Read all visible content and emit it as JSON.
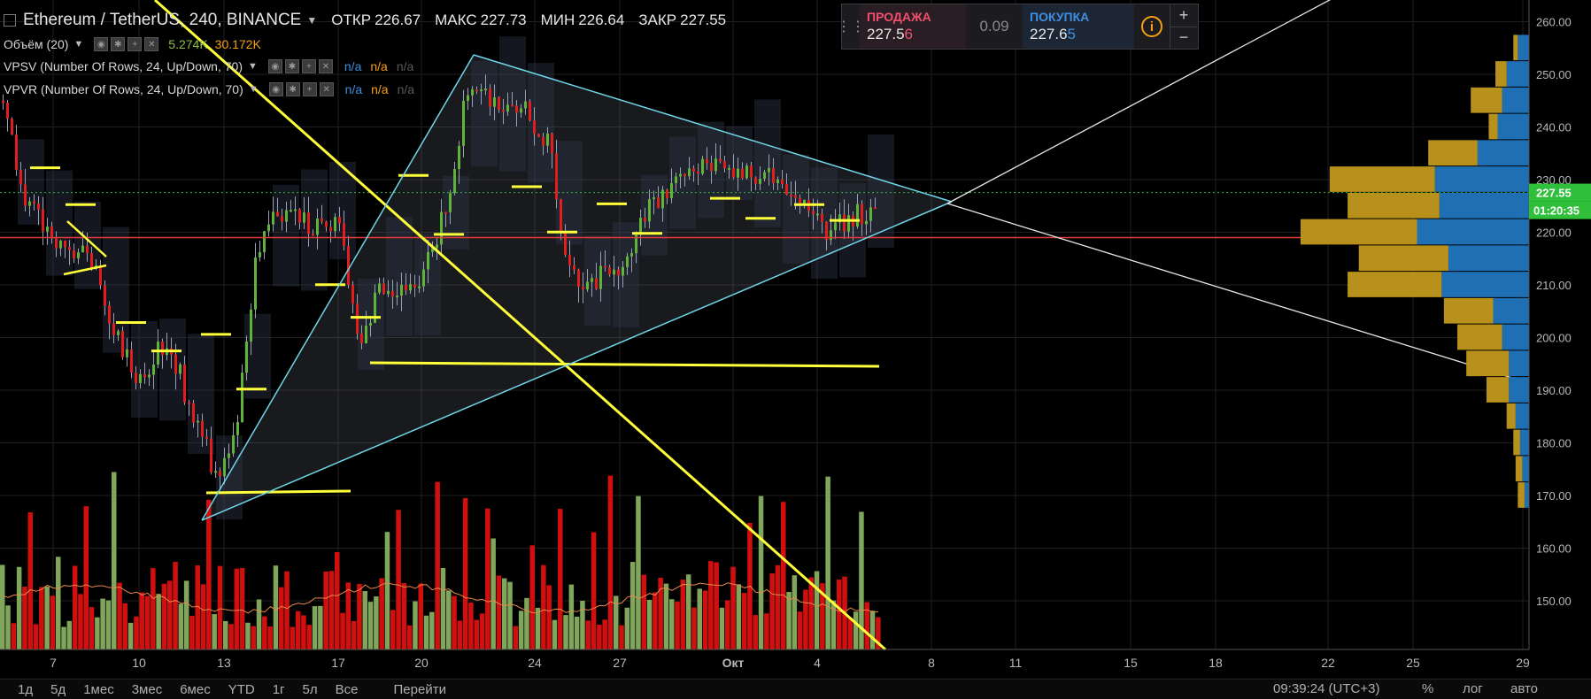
{
  "header": {
    "symbol": "Ethereum / TetherUS, 240, BINANCE",
    "open_label": "ОТКР",
    "open": "226.67",
    "high_label": "МАКС",
    "high": "227.73",
    "low_label": "МИН",
    "low": "226.64",
    "close_label": "ЗАКР",
    "close": "227.55"
  },
  "indicators": [
    {
      "name": "Объём (20)",
      "v1": "5.274K",
      "v2": "30.172K"
    },
    {
      "name": "VPSV (Number Of Rows, 24, Up/Down, 70)",
      "n1": "n/a",
      "n2": "n/a",
      "n3": "n/a"
    },
    {
      "name": "VPVR (Number Of Rows, 24, Up/Down, 70)",
      "n1": "n/a",
      "n2": "n/a",
      "n3": "n/a"
    }
  ],
  "trade_panel": {
    "sell_label": "ПРОДАЖА",
    "sell_price_main": "227.5",
    "sell_price_tail": "6",
    "spread": "0.09",
    "buy_label": "ПОКУПКА",
    "buy_price_main": "227.6",
    "buy_price_tail": "5",
    "plus": "+",
    "minus": "−",
    "info": "i"
  },
  "toolbar": {
    "ranges": [
      "1д",
      "5д",
      "1мес",
      "3мес",
      "6мес",
      "YTD",
      "1г",
      "5л",
      "Все"
    ],
    "goto": "Перейти",
    "time": "09:39:24 (UTC+3)",
    "percent": "%",
    "log": "лог",
    "auto": "авто"
  },
  "chart_data": {
    "type": "candlestick",
    "colors": {
      "up": "#5fb336",
      "down": "#e01e1e",
      "volume_up": "#7fa65a",
      "volume_down": "#d20f0f",
      "vp_up": "#1e6fb3",
      "vp_down": "#b8911c",
      "trend_yellow": "#ffff3a",
      "triangle": "#6fd6e8",
      "support_red": "#e33b3b"
    },
    "y_axis": {
      "ticks": [
        260,
        250,
        240,
        230,
        220,
        210,
        200,
        190,
        180,
        170,
        160,
        150
      ],
      "min": 145,
      "max": 265
    },
    "x_axis": {
      "ticks": [
        "7",
        "10",
        "13",
        "17",
        "20",
        "24",
        "27",
        "Окт",
        "4",
        "8",
        "11",
        "15",
        "18",
        "22",
        "25",
        "29"
      ]
    },
    "last_price": "227.55",
    "countdown": "01:20:35",
    "support_level": 219.0,
    "range_levels": [
      {
        "x": "7",
        "low": 213,
        "high": 248
      },
      {
        "x": "10",
        "low": 188,
        "high": 215
      },
      {
        "x": "13",
        "low": 172,
        "high": 224
      },
      {
        "x": "17",
        "low": 193,
        "high": 224
      },
      {
        "x": "20",
        "low": 200,
        "high": 256
      },
      {
        "x": "24",
        "low": 205,
        "high": 248
      },
      {
        "x": "27",
        "low": 210,
        "high": 238
      },
      {
        "x": "Окт",
        "low": 216,
        "high": 235
      },
      {
        "x": "4",
        "low": 217,
        "high": 232
      }
    ],
    "volume_profile": [
      {
        "price": 255,
        "up": 0.05,
        "down": 0.02
      },
      {
        "price": 250,
        "up": 0.1,
        "down": 0.05
      },
      {
        "price": 245,
        "up": 0.12,
        "down": 0.14
      },
      {
        "price": 240,
        "up": 0.14,
        "down": 0.04
      },
      {
        "price": 235,
        "up": 0.23,
        "down": 0.22
      },
      {
        "price": 230,
        "up": 0.42,
        "down": 0.47
      },
      {
        "price": 225,
        "up": 0.4,
        "down": 0.41
      },
      {
        "price": 220,
        "up": 0.5,
        "down": 0.52
      },
      {
        "price": 215,
        "up": 0.36,
        "down": 0.4
      },
      {
        "price": 210,
        "up": 0.39,
        "down": 0.42
      },
      {
        "price": 205,
        "up": 0.16,
        "down": 0.22
      },
      {
        "price": 200,
        "up": 0.12,
        "down": 0.2
      },
      {
        "price": 195,
        "up": 0.09,
        "down": 0.19
      },
      {
        "price": 190,
        "up": 0.09,
        "down": 0.1
      },
      {
        "price": 185,
        "up": 0.06,
        "down": 0.04
      },
      {
        "price": 180,
        "up": 0.04,
        "down": 0.03
      },
      {
        "price": 175,
        "up": 0.03,
        "down": 0.03
      },
      {
        "price": 170,
        "up": 0.02,
        "down": 0.03
      }
    ]
  }
}
